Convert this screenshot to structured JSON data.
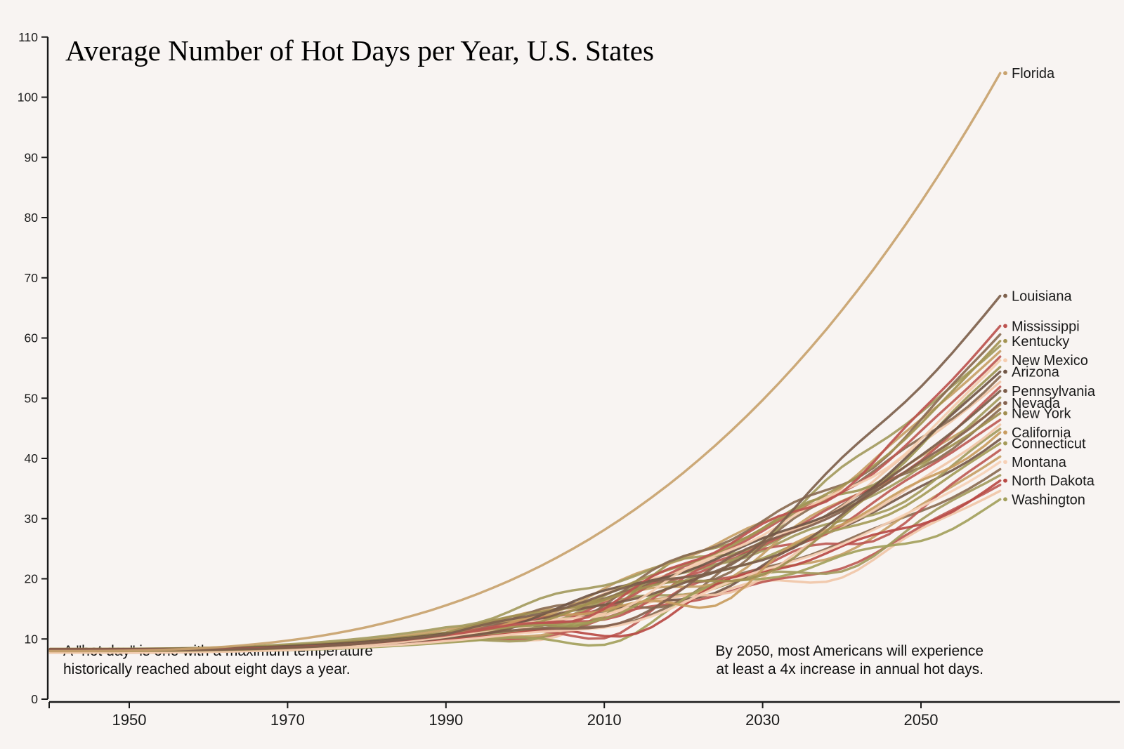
{
  "chart_data": {
    "type": "line",
    "title": "Average Number of Hot Days per Year, U.S. States",
    "xlabel": "",
    "ylabel": "",
    "xlim": [
      1940,
      2060
    ],
    "ylim": [
      0,
      110
    ],
    "x_ticks": [
      1950,
      1970,
      1990,
      2010,
      2030,
      2050
    ],
    "y_ticks": [
      0,
      10,
      20,
      30,
      40,
      50,
      60,
      70,
      80,
      90,
      100,
      110
    ],
    "grid": false,
    "legend_position": "right-end-labels",
    "start_year": 1940,
    "end_year": 2060,
    "start_value": 8,
    "baseline_note_lines": [
      "A \"hot day\" is one with a maximum temperature",
      "historically reached about eight days a year."
    ],
    "projection_note_lines": [
      "By 2050, most Americans will experience",
      "at least a 4x increase in annual hot days."
    ],
    "series": [
      {
        "name": "Florida",
        "color": "#c8a26e",
        "end": 104,
        "smooth": true,
        "exp": 2.9
      },
      {
        "name": "Louisiana",
        "color": "#7d604c",
        "end": 67
      },
      {
        "name": "Mississippi",
        "color": "#bc524f",
        "end": 62
      },
      {
        "name": "Kentucky",
        "color": "#a29352",
        "end": 59.5
      },
      {
        "name": "New Mexico",
        "color": "#f5cdb0",
        "end": 56.3
      },
      {
        "name": "Arizona",
        "color": "#705646",
        "end": 54.4
      },
      {
        "name": "Pennsylvania",
        "color": "#7b5c49",
        "end": 51.2
      },
      {
        "name": "Nevada",
        "color": "#84614e",
        "end": 49.2
      },
      {
        "name": "New York",
        "color": "#a08e50",
        "end": 47.5
      },
      {
        "name": "California",
        "color": "#c89c60",
        "end": 44.3
      },
      {
        "name": "Connecticut",
        "color": "#a49b59",
        "end": 42.5
      },
      {
        "name": "Montana",
        "color": "#f6d1b7",
        "end": 39.4
      },
      {
        "name": "North Dakota",
        "color": "#b84a45",
        "end": 36.3
      },
      {
        "name": "Washington",
        "color": "#a3a05c",
        "end": 33.2
      }
    ],
    "background_series": [
      {
        "color": "#f0c5a8",
        "end": 34.6
      },
      {
        "color": "#bd5a55",
        "end": 35.6
      },
      {
        "color": "#a39a5e",
        "end": 37.2
      },
      {
        "color": "#8a6b52",
        "end": 38.2
      },
      {
        "color": "#c59e66",
        "end": 40.3
      },
      {
        "color": "#bd5a55",
        "end": 41.4
      },
      {
        "color": "#75594a",
        "end": 43.2
      },
      {
        "color": "#a39a5e",
        "end": 44.9
      },
      {
        "color": "#f0c5a8",
        "end": 45.6
      },
      {
        "color": "#bd5a55",
        "end": 46.4
      },
      {
        "color": "#8a6b52",
        "end": 48.2
      },
      {
        "color": "#c59e66",
        "end": 48.9
      },
      {
        "color": "#a39a5e",
        "end": 50.1
      },
      {
        "color": "#bd5a55",
        "end": 51.9
      },
      {
        "color": "#f0c5a8",
        "end": 52.7
      },
      {
        "color": "#8a6b52",
        "end": 53.6
      },
      {
        "color": "#9c9455",
        "end": 55.2
      },
      {
        "color": "#bd5a55",
        "end": 56.9
      },
      {
        "color": "#c59e66",
        "end": 57.8
      },
      {
        "color": "#a39a5e",
        "end": 58.7
      },
      {
        "color": "#8a6b52",
        "end": 60.6
      }
    ]
  }
}
